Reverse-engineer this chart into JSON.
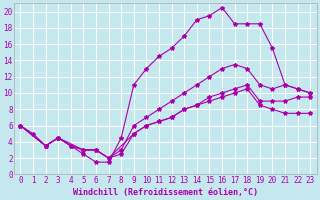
{
  "xlabel": "Windchill (Refroidissement éolien,°C)",
  "bg_color": "#c5e8ef",
  "line_color": "#aa00aa",
  "grid_color": "#ffffff",
  "xlim": [
    -0.5,
    23.5
  ],
  "ylim": [
    0,
    21
  ],
  "xticks": [
    0,
    1,
    2,
    3,
    4,
    5,
    6,
    7,
    8,
    9,
    10,
    11,
    12,
    13,
    14,
    15,
    16,
    17,
    18,
    19,
    20,
    21,
    22,
    23
  ],
  "yticks": [
    0,
    2,
    4,
    6,
    8,
    10,
    12,
    14,
    16,
    18,
    20
  ],
  "series1_x": [
    0,
    1,
    2,
    3,
    4,
    5,
    6,
    7,
    8,
    9,
    10,
    11,
    12,
    13,
    14,
    15,
    16,
    17,
    18,
    19,
    20,
    21,
    22,
    23
  ],
  "series1_y": [
    6,
    5,
    3.5,
    4.5,
    3.5,
    2.5,
    1.5,
    1.5,
    4.5,
    11,
    13,
    14.5,
    15.5,
    17,
    19,
    19.5,
    20.5,
    18.5,
    18.5,
    18.5,
    15.5,
    11,
    10.5,
    10
  ],
  "series2_x": [
    0,
    2,
    3,
    4,
    5,
    6,
    7,
    8,
    9,
    10,
    11,
    12,
    13,
    14,
    15,
    16,
    17,
    18,
    19,
    20,
    21,
    22,
    23
  ],
  "series2_y": [
    6,
    3.5,
    4.5,
    3.5,
    3,
    3,
    2,
    3,
    6,
    7,
    8,
    9,
    10,
    11,
    12,
    13,
    13.5,
    13,
    11,
    10.5,
    11,
    10.5,
    10
  ],
  "series3_x": [
    0,
    2,
    3,
    4,
    5,
    6,
    7,
    8,
    9,
    10,
    11,
    12,
    13,
    14,
    15,
    16,
    17,
    18,
    19,
    20,
    21,
    22,
    23
  ],
  "series3_y": [
    6,
    3.5,
    4.5,
    3.5,
    3,
    3,
    2,
    2.5,
    5,
    6,
    6.5,
    7,
    8,
    8.5,
    9.5,
    10,
    10.5,
    11,
    9,
    9,
    9,
    9.5,
    9.5
  ],
  "series4_x": [
    0,
    2,
    3,
    5,
    6,
    7,
    9,
    10,
    11,
    12,
    13,
    14,
    15,
    16,
    17,
    18,
    19,
    20,
    21,
    22,
    23
  ],
  "series4_y": [
    6,
    3.5,
    4.5,
    3,
    3,
    2,
    5,
    6,
    6.5,
    7,
    8,
    8.5,
    9,
    9.5,
    10,
    10.5,
    8.5,
    8,
    7.5,
    7.5,
    7.5
  ],
  "xlabel_fontsize": 6,
  "tick_fontsize": 5.5,
  "marker_size": 3,
  "line_width": 0.8
}
